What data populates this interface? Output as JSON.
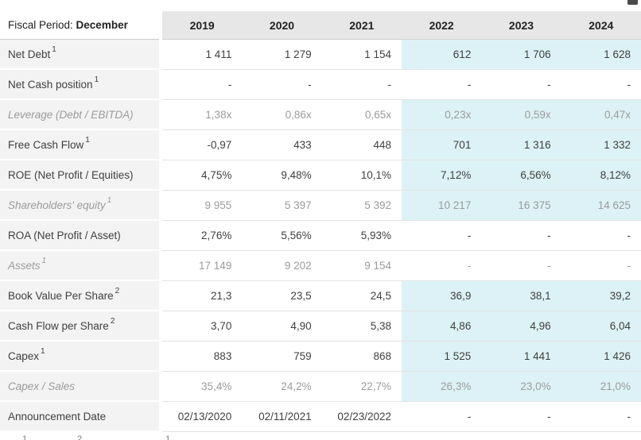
{
  "header": {
    "fiscal_label": "Fiscal Period:",
    "fiscal_value": "December",
    "years": [
      "2019",
      "2020",
      "2021",
      "2022",
      "2023",
      "2024"
    ]
  },
  "table": {
    "rows": [
      {
        "label": "Net Debt",
        "sup": "1",
        "italic": false,
        "values": [
          "1 411",
          "1 279",
          "1 154",
          "612",
          "1 706",
          "1 628"
        ],
        "highlight": [
          false,
          false,
          false,
          true,
          true,
          true
        ]
      },
      {
        "label": "Net Cash position",
        "sup": "1",
        "italic": false,
        "values": [
          "-",
          "-",
          "-",
          "-",
          "-",
          "-"
        ],
        "highlight": [
          false,
          false,
          false,
          false,
          false,
          false
        ]
      },
      {
        "label": "Leverage (Debt / EBITDA)",
        "sup": "",
        "italic": true,
        "values": [
          "1,38x",
          "0,86x",
          "0,65x",
          "0,23x",
          "0,59x",
          "0,47x"
        ],
        "highlight": [
          false,
          false,
          false,
          true,
          true,
          true
        ]
      },
      {
        "label": "Free Cash Flow",
        "sup": "1",
        "italic": false,
        "values": [
          "-0,97",
          "433",
          "448",
          "701",
          "1 316",
          "1 332"
        ],
        "highlight": [
          false,
          false,
          false,
          true,
          true,
          true
        ]
      },
      {
        "label": "ROE (Net Profit / Equities)",
        "sup": "",
        "italic": false,
        "values": [
          "4,75%",
          "9,48%",
          "10,1%",
          "7,12%",
          "6,56%",
          "8,12%"
        ],
        "highlight": [
          false,
          false,
          false,
          true,
          true,
          true
        ]
      },
      {
        "label": "Shareholders' equity",
        "sup": "1",
        "italic": true,
        "values": [
          "9 955",
          "5 397",
          "5 392",
          "10 217",
          "16 375",
          "14 625"
        ],
        "highlight": [
          false,
          false,
          false,
          true,
          true,
          true
        ]
      },
      {
        "label": "ROA (Net Profit / Asset)",
        "sup": "",
        "italic": false,
        "values": [
          "2,76%",
          "5,56%",
          "5,93%",
          "-",
          "-",
          "-"
        ],
        "highlight": [
          false,
          false,
          false,
          false,
          false,
          false
        ]
      },
      {
        "label": "Assets",
        "sup": "1",
        "italic": true,
        "values": [
          "17 149",
          "9 202",
          "9 154",
          "-",
          "-",
          "-"
        ],
        "highlight": [
          false,
          false,
          false,
          false,
          false,
          false
        ]
      },
      {
        "label": "Book Value Per Share",
        "sup": "2",
        "italic": false,
        "values": [
          "21,3",
          "23,5",
          "24,5",
          "36,9",
          "38,1",
          "39,2"
        ],
        "highlight": [
          false,
          false,
          false,
          true,
          true,
          true
        ]
      },
      {
        "label": "Cash Flow per Share",
        "sup": "2",
        "italic": false,
        "values": [
          "3,70",
          "4,90",
          "5,38",
          "4,86",
          "4,96",
          "6,04"
        ],
        "highlight": [
          false,
          false,
          false,
          true,
          true,
          true
        ]
      },
      {
        "label": "Capex",
        "sup": "1",
        "italic": false,
        "values": [
          "883",
          "759",
          "868",
          "1 525",
          "1 441",
          "1 426"
        ],
        "highlight": [
          false,
          false,
          false,
          true,
          true,
          true
        ]
      },
      {
        "label": "Capex / Sales",
        "sup": "",
        "italic": true,
        "values": [
          "35,4%",
          "24,2%",
          "22,7%",
          "26,3%",
          "23,0%",
          "21,0%"
        ],
        "highlight": [
          false,
          false,
          false,
          true,
          true,
          true
        ]
      },
      {
        "label": "Announcement Date",
        "sup": "",
        "italic": false,
        "values": [
          "02/13/2020",
          "02/11/2021",
          "02/23/2022",
          "-",
          "-",
          "-"
        ],
        "highlight": [
          false,
          false,
          false,
          false,
          false,
          false
        ]
      }
    ]
  },
  "footnotes": {
    "markers": [
      "1",
      "2",
      "1"
    ]
  },
  "colors": {
    "estimate_bg": "#ddf2f6",
    "label_bg": "#f3f3f3",
    "year_header_bg": "#e7e7e7"
  }
}
